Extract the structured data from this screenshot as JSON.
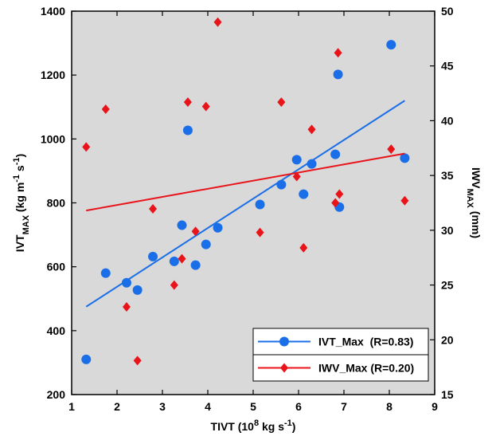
{
  "chart_data": {
    "type": "scatter",
    "x": [
      1.32,
      1.75,
      2.21,
      2.45,
      2.79,
      3.26,
      3.43,
      3.56,
      3.73,
      3.96,
      4.22,
      5.15,
      5.62,
      5.96,
      6.11,
      6.29,
      6.81,
      6.87,
      6.9,
      8.04,
      8.34
    ],
    "series": [
      {
        "name": "IVT_Max  (R=0.83)",
        "color": "#1a6fe8",
        "marker": "circle",
        "axis": "y",
        "values": [
          310,
          580,
          550,
          527,
          632,
          617,
          730,
          1027,
          605,
          670,
          722,
          795,
          857,
          935,
          827,
          922,
          952,
          1202,
          787,
          1295,
          940
        ],
        "fit": {
          "x": [
            1.32,
            8.34
          ],
          "y": [
            475,
            1120
          ]
        }
      },
      {
        "name": "IWV_Max (R=0.20)",
        "color": "#e8141a",
        "marker": "diamond",
        "axis": "y2",
        "values": [
          37.6,
          41.05,
          23.0,
          18.1,
          31.95,
          25.0,
          27.4,
          41.7,
          29.9,
          41.3,
          49.0,
          29.8,
          41.7,
          34.9,
          28.4,
          39.2,
          32.5,
          46.2,
          33.3,
          37.4,
          32.7
        ],
        "fit": {
          "x": [
            1.32,
            8.34
          ],
          "y": [
            31.8,
            37.0
          ]
        }
      }
    ],
    "xlabel": [
      {
        "text": "TIVT (10"
      },
      {
        "text": "8",
        "style": "super"
      },
      {
        "text": " kg s"
      },
      {
        "text": "-1",
        "style": "super"
      },
      {
        "text": ")"
      }
    ],
    "ylabel": [
      {
        "text": "IVT"
      },
      {
        "text": "MAX",
        "style": "sub"
      },
      {
        "text": " (kg m"
      },
      {
        "text": "-1",
        "style": "super"
      },
      {
        "text": " s"
      },
      {
        "text": "-1",
        "style": "super"
      },
      {
        "text": ")"
      }
    ],
    "y2label": [
      {
        "text": "IWV"
      },
      {
        "text": "MAX",
        "style": "sub"
      },
      {
        "text": " (mm)"
      }
    ],
    "xlim": [
      1,
      9
    ],
    "xticks": [
      1,
      2,
      3,
      4,
      5,
      6,
      7,
      8,
      9
    ],
    "ylim": [
      200,
      1400
    ],
    "yticks": [
      200,
      400,
      600,
      800,
      1000,
      1200,
      1400
    ],
    "y2lim": [
      15,
      50
    ],
    "y2ticks": [
      15,
      20,
      25,
      30,
      35,
      40,
      45,
      50
    ],
    "background": "#d9d9d9",
    "legend": "lower right"
  }
}
